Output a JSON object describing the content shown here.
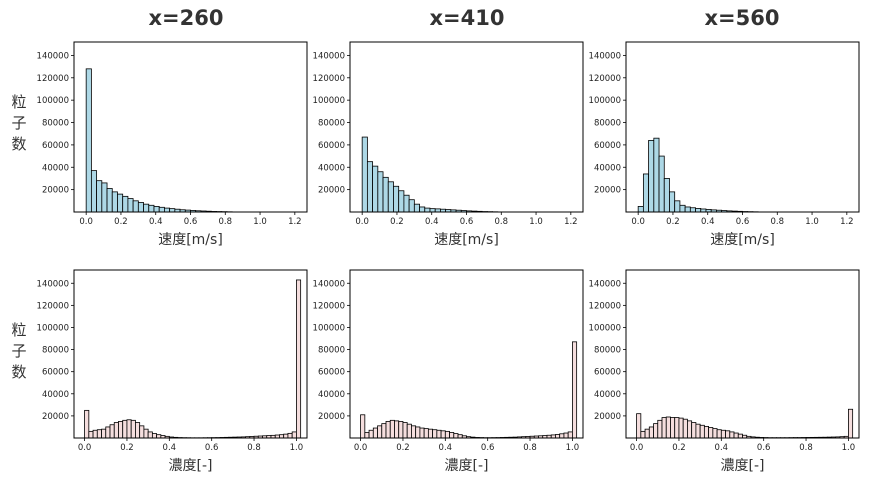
{
  "columns": [
    {
      "title": "x=260"
    },
    {
      "title": "x=410"
    },
    {
      "title": "x=560"
    }
  ],
  "row_labels": {
    "top": [
      "粒",
      "子",
      "数"
    ],
    "bottom": [
      "粒",
      "子",
      "数"
    ]
  },
  "colors": {
    "velocity_bar": "#add8e6",
    "concentration_bar": "#f5dede",
    "bar_edge": "#000000"
  },
  "chart_data": [
    {
      "type": "bar",
      "subtype": "histogram",
      "title": "x=260",
      "xlabel": "速度[m/s]",
      "ylabel": "粒子数",
      "xlim": [
        -0.07,
        1.27
      ],
      "ylim": [
        0,
        152000
      ],
      "xticks": [
        0.0,
        0.2,
        0.4,
        0.6,
        0.8,
        1.0,
        1.2
      ],
      "xtick_labels": [
        "0.0",
        "0.2",
        "0.4",
        "0.6",
        "0.8",
        "1.0",
        "1.2"
      ],
      "yticks": [
        20000,
        40000,
        60000,
        80000,
        100000,
        120000,
        140000
      ],
      "bin_start": 0.0,
      "bin_width": 0.03,
      "values": [
        128000,
        37000,
        28000,
        26000,
        21000,
        18000,
        16000,
        14000,
        12000,
        10000,
        8500,
        7000,
        6000,
        5000,
        4200,
        3500,
        3000,
        2500,
        2000,
        1700,
        1400,
        1100,
        900,
        700,
        500,
        400,
        300,
        200
      ]
    },
    {
      "type": "bar",
      "subtype": "histogram",
      "title": "x=410",
      "xlabel": "速度[m/s]",
      "ylabel": "",
      "xlim": [
        -0.07,
        1.27
      ],
      "ylim": [
        0,
        152000
      ],
      "xticks": [
        0.0,
        0.2,
        0.4,
        0.6,
        0.8,
        1.0,
        1.2
      ],
      "xtick_labels": [
        "0.0",
        "0.2",
        "0.4",
        "0.6",
        "0.8",
        "1.0",
        "1.2"
      ],
      "yticks": [
        20000,
        40000,
        60000,
        80000,
        100000,
        120000,
        140000
      ],
      "bin_start": 0.0,
      "bin_width": 0.03,
      "values": [
        67000,
        45000,
        41000,
        36000,
        31000,
        27000,
        23000,
        19000,
        15000,
        11000,
        7000,
        4500,
        3500,
        3000,
        2800,
        2500,
        2200,
        1900,
        1600,
        1300,
        1000,
        800,
        600,
        400,
        300,
        200
      ]
    },
    {
      "type": "bar",
      "subtype": "histogram",
      "title": "x=560",
      "xlabel": "速度[m/s]",
      "ylabel": "",
      "xlim": [
        -0.07,
        1.27
      ],
      "ylim": [
        0,
        152000
      ],
      "xticks": [
        0.0,
        0.2,
        0.4,
        0.6,
        0.8,
        1.0,
        1.2
      ],
      "xtick_labels": [
        "0.0",
        "0.2",
        "0.4",
        "0.6",
        "0.8",
        "1.0",
        "1.2"
      ],
      "yticks": [
        20000,
        40000,
        60000,
        80000,
        100000,
        120000,
        140000
      ],
      "bin_start": 0.0,
      "bin_width": 0.03,
      "values": [
        5000,
        34000,
        64000,
        66000,
        50000,
        30000,
        18000,
        10000,
        6000,
        4500,
        3800,
        3200,
        2700,
        2300,
        1900,
        1600,
        1300,
        1000,
        800,
        600,
        400,
        300,
        200
      ]
    },
    {
      "type": "bar",
      "subtype": "histogram",
      "title": "",
      "xlabel": "濃度[-]",
      "ylabel": "粒子数",
      "xlim": [
        -0.05,
        1.05
      ],
      "ylim": [
        0,
        152000
      ],
      "xticks": [
        0.0,
        0.2,
        0.4,
        0.6,
        0.8,
        1.0
      ],
      "xtick_labels": [
        "0.0",
        "0.2",
        "0.4",
        "0.6",
        "0.8",
        "1.0"
      ],
      "yticks": [
        20000,
        40000,
        60000,
        80000,
        100000,
        120000,
        140000
      ],
      "bin_start": 0.0,
      "bin_width": 0.02,
      "values": [
        25000,
        6000,
        7000,
        7500,
        8000,
        10000,
        12000,
        14000,
        15000,
        16000,
        16500,
        16000,
        14000,
        11000,
        8000,
        5500,
        4000,
        3000,
        2200,
        1500,
        900,
        600,
        400,
        300,
        250,
        200,
        200,
        200,
        250,
        300,
        350,
        400,
        500,
        600,
        700,
        800,
        900,
        1000,
        1200,
        1400,
        1600,
        1800,
        2000,
        2200,
        2400,
        2700,
        3000,
        3500,
        4200,
        5500,
        143000
      ]
    },
    {
      "type": "bar",
      "subtype": "histogram",
      "title": "",
      "xlabel": "濃度[-]",
      "ylabel": "",
      "xlim": [
        -0.05,
        1.05
      ],
      "ylim": [
        0,
        152000
      ],
      "xticks": [
        0.0,
        0.2,
        0.4,
        0.6,
        0.8,
        1.0
      ],
      "xtick_labels": [
        "0.0",
        "0.2",
        "0.4",
        "0.6",
        "0.8",
        "1.0"
      ],
      "yticks": [
        20000,
        40000,
        60000,
        80000,
        100000,
        120000,
        140000
      ],
      "bin_start": 0.0,
      "bin_width": 0.02,
      "values": [
        21000,
        5000,
        7000,
        9000,
        11000,
        13000,
        15000,
        16000,
        15500,
        15000,
        14000,
        12500,
        11000,
        10000,
        9000,
        8500,
        8000,
        7500,
        7000,
        6500,
        6000,
        5000,
        4000,
        3000,
        2000,
        1200,
        800,
        500,
        400,
        300,
        300,
        350,
        400,
        500,
        600,
        700,
        800,
        1000,
        1200,
        1400,
        1600,
        1800,
        2000,
        2200,
        2500,
        2800,
        3200,
        3800,
        4500,
        5500,
        87000
      ]
    },
    {
      "type": "bar",
      "subtype": "histogram",
      "title": "",
      "xlabel": "濃度[-]",
      "ylabel": "",
      "xlim": [
        -0.05,
        1.05
      ],
      "ylim": [
        0,
        152000
      ],
      "xticks": [
        0.0,
        0.2,
        0.4,
        0.6,
        0.8,
        1.0
      ],
      "xtick_labels": [
        "0.0",
        "0.2",
        "0.4",
        "0.6",
        "0.8",
        "1.0"
      ],
      "yticks": [
        20000,
        40000,
        60000,
        80000,
        100000,
        120000,
        140000
      ],
      "bin_start": 0.0,
      "bin_width": 0.02,
      "values": [
        22000,
        6000,
        8000,
        10000,
        13000,
        16000,
        18500,
        19000,
        18500,
        18500,
        18000,
        17000,
        15500,
        14000,
        12500,
        11500,
        10500,
        9500,
        8500,
        7500,
        7000,
        6500,
        5500,
        4500,
        3500,
        2500,
        1500,
        1000,
        700,
        500,
        400,
        300,
        300,
        300,
        300,
        300,
        350,
        400,
        400,
        450,
        500,
        550,
        600,
        650,
        700,
        800,
        900,
        1000,
        1200,
        1500,
        26000
      ]
    }
  ]
}
